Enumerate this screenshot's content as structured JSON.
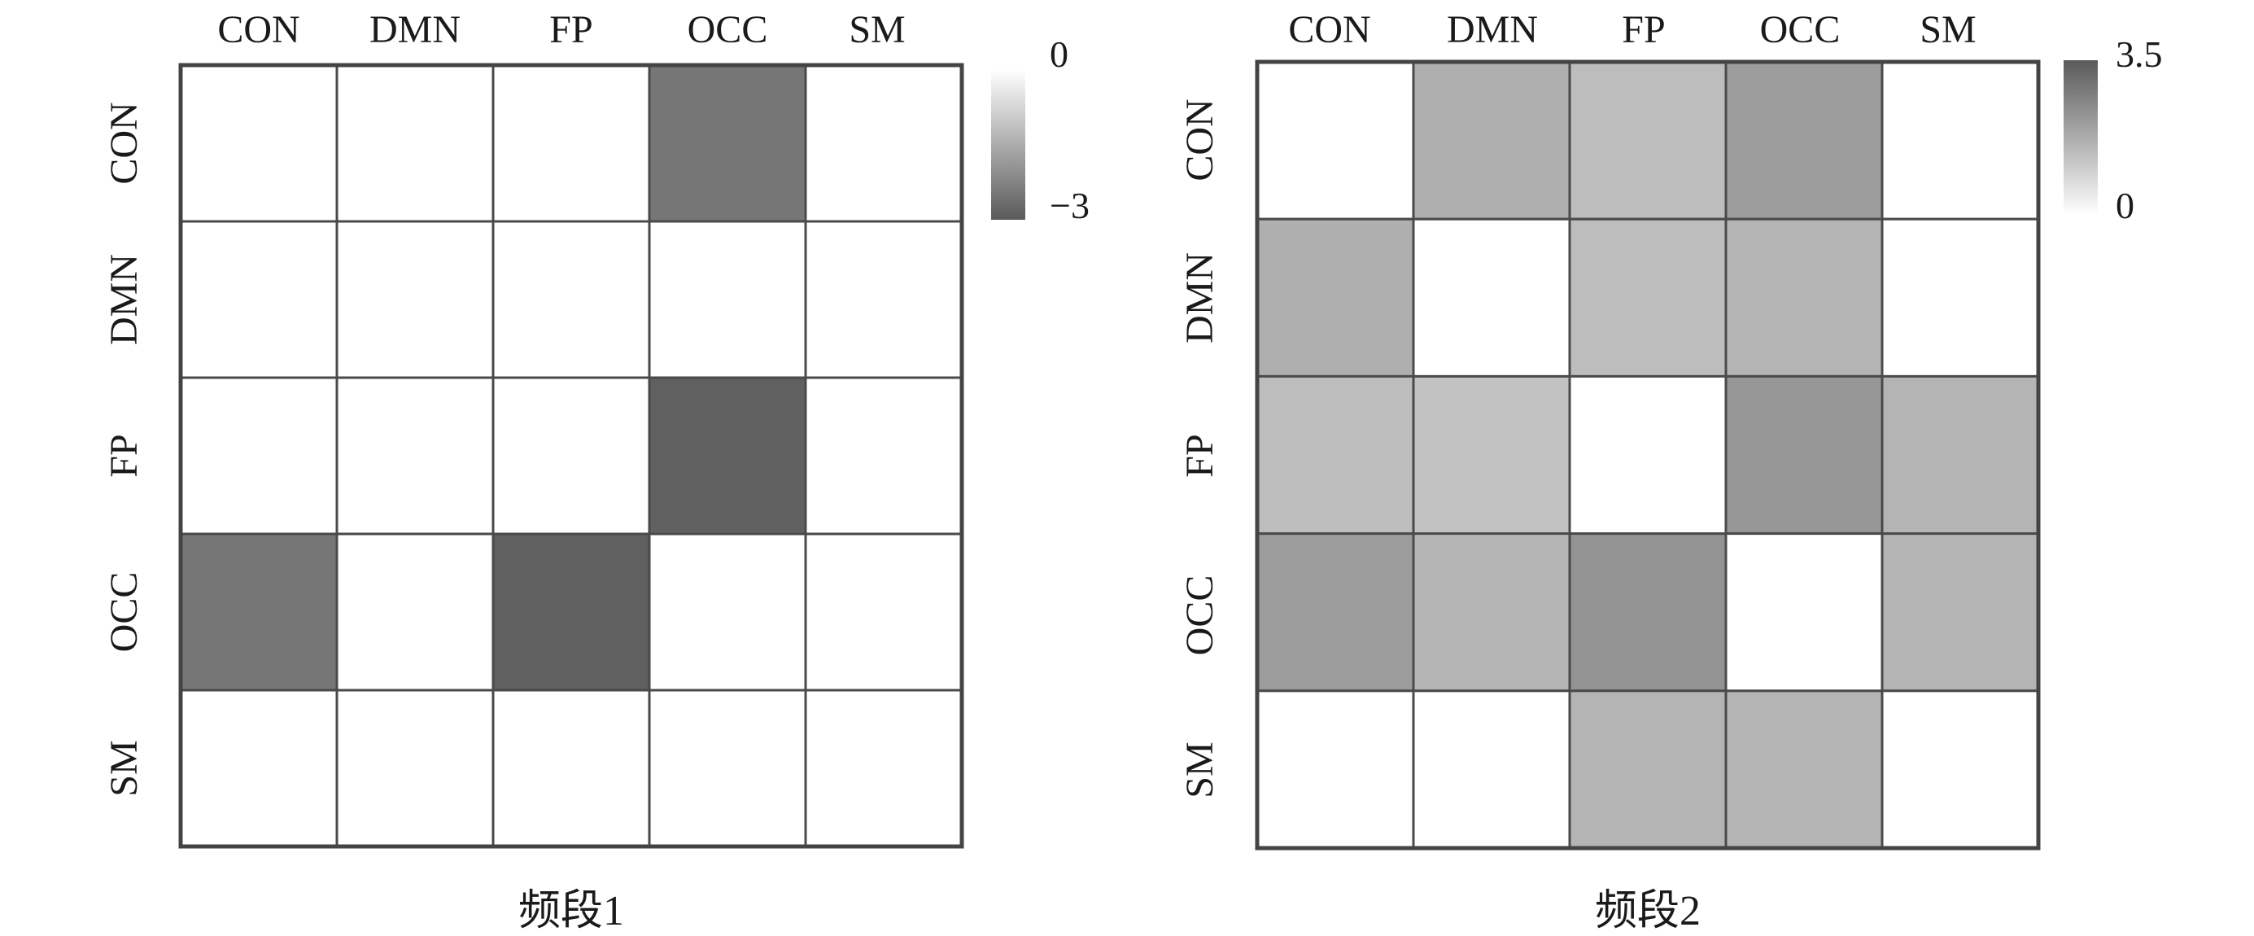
{
  "chart_data": [
    {
      "type": "heatmap",
      "title": "频段1",
      "rows": [
        "CON",
        "DMN",
        "FP",
        "OCC",
        "SM"
      ],
      "cols": [
        "CON",
        "DMN",
        "FP",
        "OCC",
        "SM"
      ],
      "values": [
        [
          0,
          0,
          0,
          -2.5,
          0
        ],
        [
          0,
          0,
          0,
          0,
          0
        ],
        [
          0,
          0,
          0,
          -2.9,
          0
        ],
        [
          -2.5,
          0,
          -2.9,
          0,
          0
        ],
        [
          0,
          0,
          0,
          0,
          0
        ]
      ],
      "colorbar": {
        "min": -3,
        "max": 0,
        "top_label": "0",
        "bottom_label": "−3",
        "low_color": "#5a5a5a",
        "high_color": "#ffffff"
      },
      "grid": true
    },
    {
      "type": "heatmap",
      "title": "频段2",
      "rows": [
        "CON",
        "DMN",
        "FP",
        "OCC",
        "SM"
      ],
      "cols": [
        "CON",
        "DMN",
        "FP",
        "OCC",
        "SM"
      ],
      "values": [
        [
          0,
          1.7,
          1.4,
          2.1,
          0
        ],
        [
          1.7,
          0,
          1.4,
          1.6,
          0
        ],
        [
          1.4,
          1.3,
          0,
          2.2,
          1.6
        ],
        [
          2.1,
          1.6,
          2.3,
          0,
          1.6
        ],
        [
          0,
          0,
          1.6,
          1.6,
          0
        ]
      ],
      "colorbar": {
        "min": 0,
        "max": 3.5,
        "top_label": "3.5",
        "bottom_label": "0",
        "low_color": "#ffffff",
        "high_color": "#5a5a5a"
      },
      "grid": true
    }
  ]
}
